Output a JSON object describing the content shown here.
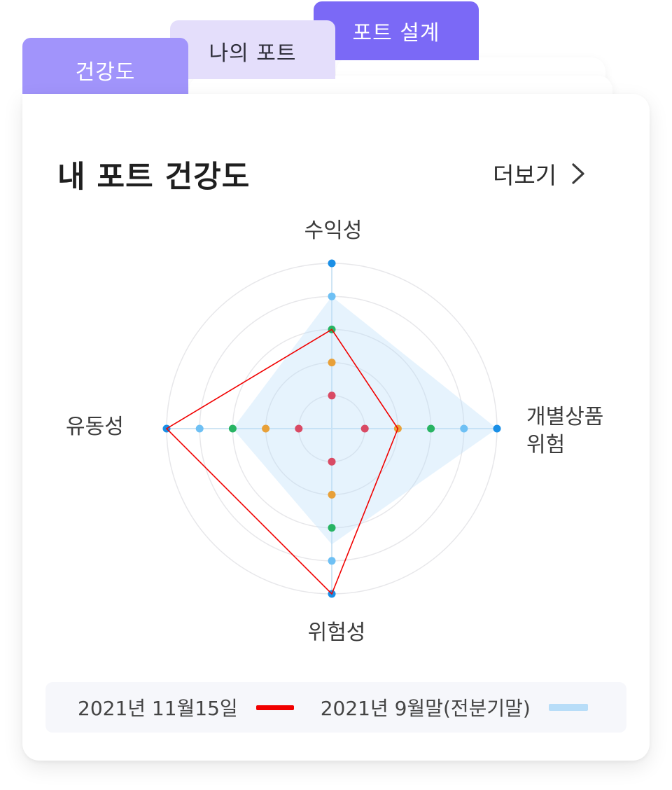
{
  "tabs": [
    {
      "label": "건강도",
      "active": true
    },
    {
      "label": "나의 포트",
      "active": false
    },
    {
      "label": "포트 설계",
      "active": false
    }
  ],
  "card": {
    "title": "내 포트 건강도",
    "more_label": "더보기"
  },
  "icons": {
    "more": "chevron-right-icon"
  },
  "colors": {
    "tab_design": "#7b69f6",
    "tab_myport": "#e4defb",
    "tab_health": "#a194fb",
    "series_current": "#f10000",
    "series_previous": "#b8ddf8",
    "level_colors": [
      "#d94a64",
      "#e8a038",
      "#28b463",
      "#6ec0f4",
      "#1a8fe6"
    ]
  },
  "chart_data": {
    "type": "radar",
    "axes": [
      "수익성",
      "개별상품\n위험",
      "위험성",
      "유동성"
    ],
    "axis_label_lines": {
      "top": [
        "수익성"
      ],
      "right": [
        "개별상품",
        "위험"
      ],
      "bottom": [
        "위험성"
      ],
      "left": [
        "유동성"
      ]
    },
    "levels": 5,
    "range": [
      0,
      5
    ],
    "grid": "circular",
    "series": [
      {
        "name": "2021년 11월15일",
        "values": [
          3,
          2,
          5,
          5
        ]
      },
      {
        "name": "2021년 9월말(전분기말)",
        "values": [
          4,
          5,
          3.5,
          3
        ]
      }
    ],
    "legend_position": "bottom"
  }
}
